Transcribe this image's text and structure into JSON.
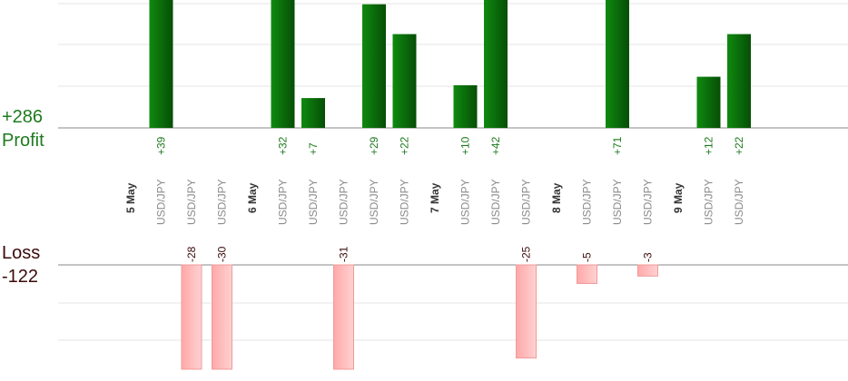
{
  "summary": {
    "profit_total": "+286",
    "profit_label": "Profit",
    "loss_label": "Loss",
    "loss_total": "-122"
  },
  "colors": {
    "profit_bar": "#0b6b0b",
    "loss_bar": "#ffb3b3",
    "profit_text": "#1f7a1f",
    "loss_text": "#3b0a0a",
    "pair_text": "#8a8a8a",
    "date_text": "#333333",
    "grid": "#e6e6e6",
    "axis": "#888888"
  },
  "chart_data": {
    "type": "bar",
    "categories": [
      "5 May",
      "USD/JPY",
      "USD/JPY",
      "USD/JPY",
      "6 May",
      "USD/JPY",
      "USD/JPY",
      "USD/JPY",
      "USD/JPY",
      "USD/JPY",
      "7 May",
      "USD/JPY",
      "USD/JPY",
      "USD/JPY",
      "8 May",
      "USD/JPY",
      "USD/JPY",
      "USD/JPY",
      "9 May",
      "USD/JPY",
      "USD/JPY"
    ],
    "date_markers": [
      "5 May",
      "6 May",
      "7 May",
      "8 May",
      "9 May"
    ],
    "series": [
      {
        "name": "Profit",
        "values": [
          null,
          39,
          null,
          null,
          null,
          32,
          7,
          null,
          29,
          22,
          null,
          10,
          42,
          null,
          null,
          null,
          71,
          null,
          null,
          12,
          22
        ],
        "labels": [
          null,
          "+39",
          null,
          null,
          null,
          "+32",
          "+7",
          null,
          "+29",
          "+22",
          null,
          "+10",
          "+42",
          null,
          null,
          null,
          "+71",
          null,
          null,
          "+12",
          "+22"
        ]
      },
      {
        "name": "Loss",
        "values": [
          null,
          null,
          -28,
          -30,
          null,
          null,
          null,
          -31,
          null,
          null,
          null,
          null,
          null,
          -25,
          null,
          -5,
          null,
          -3,
          null,
          null,
          null
        ],
        "labels": [
          null,
          null,
          "-28",
          "-30",
          null,
          null,
          null,
          "-31",
          null,
          null,
          null,
          null,
          null,
          "-25",
          null,
          "-5",
          null,
          "-3",
          null,
          null,
          null
        ]
      }
    ],
    "profit_axis_max": 30,
    "loss_axis_max": 28,
    "grid": true
  }
}
